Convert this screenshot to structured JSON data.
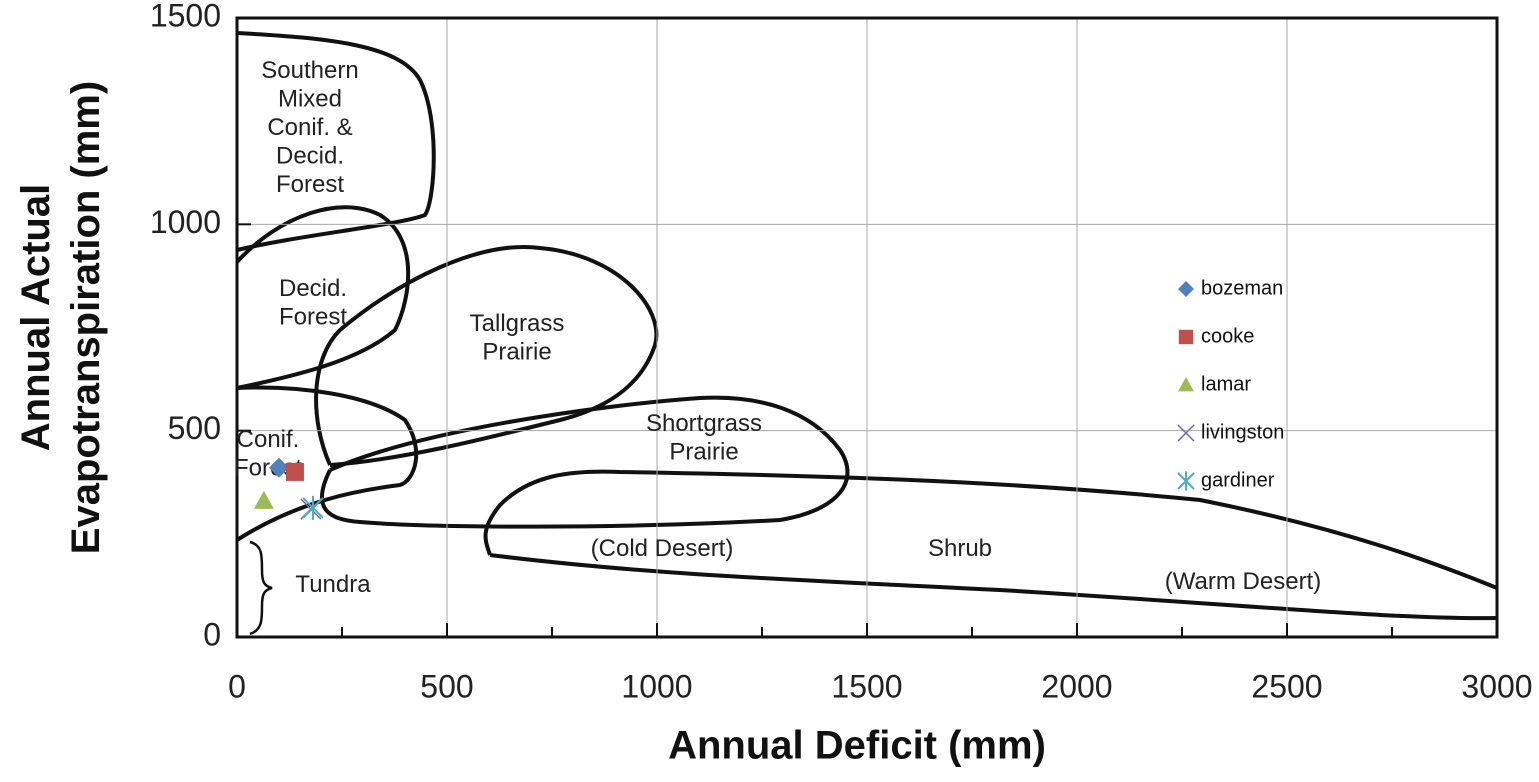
{
  "chart_data": {
    "type": "scatter",
    "xlabel": "Annual Deficit (mm)",
    "ylabel": "Annual Actual Evapotranspiration (mm)",
    "xlim": [
      0,
      3000
    ],
    "ylim": [
      0,
      1500
    ],
    "xticks": [
      0,
      500,
      1000,
      1500,
      2000,
      2500,
      3000
    ],
    "yticks": [
      0,
      500,
      1000,
      1500
    ],
    "grid": true,
    "legend": "right",
    "annotations": [
      [
        "Southern",
        "Mixed",
        "Conif. &",
        "Decid.",
        "Forest"
      ],
      [
        "Decid.",
        "Forest"
      ],
      [
        "Tallgrass",
        "Prairie"
      ],
      [
        "Conif.",
        "Forest"
      ],
      [
        "Shortgrass",
        "Prairie"
      ],
      [
        "(Cold Desert)"
      ],
      [
        "Shrub"
      ],
      [
        "(Warm Desert)"
      ],
      [
        "Tundra"
      ]
    ],
    "series": [
      {
        "name": "bozeman",
        "color": "#4f81bd",
        "marker": "diamond",
        "x": [
          100
        ],
        "values": [
          410
        ]
      },
      {
        "name": "cooke",
        "color": "#c0504d",
        "marker": "square",
        "x": [
          138
        ],
        "values": [
          400
        ]
      },
      {
        "name": "lamar",
        "color": "#9bbb59",
        "marker": "triangle",
        "x": [
          64
        ],
        "values": [
          330
        ]
      },
      {
        "name": "livingston",
        "color": "#8064a2",
        "marker": "x",
        "x": [
          176
        ],
        "values": [
          310
        ]
      },
      {
        "name": "gardiner",
        "color": "#4bacc6",
        "marker": "asterisk",
        "x": [
          181
        ],
        "values": [
          313
        ]
      }
    ]
  }
}
